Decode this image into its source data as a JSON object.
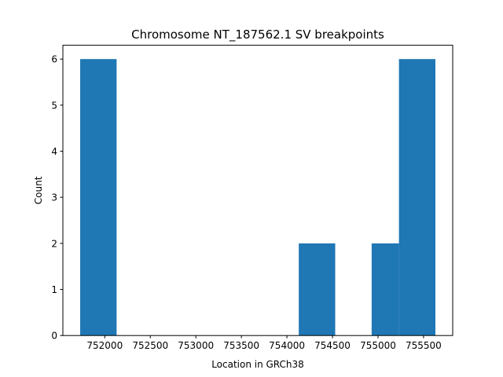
{
  "chart_data": {
    "type": "histogram",
    "title": "Chromosome NT_187562.1 SV breakpoints",
    "xlabel": "Location in GRCh38",
    "ylabel": "Count",
    "bin_edges": [
      751730,
      752130,
      752530,
      752930,
      753330,
      753730,
      754130,
      754530,
      754930,
      755230,
      755630
    ],
    "counts": [
      6,
      0,
      0,
      0,
      0,
      0,
      2,
      0,
      2,
      6
    ],
    "xlim": [
      751540,
      755820
    ],
    "ylim": [
      0,
      6.3
    ],
    "xticks": [
      752000,
      752500,
      753000,
      753500,
      754000,
      754500,
      755000,
      755500
    ],
    "yticks": [
      0,
      1,
      2,
      3,
      4,
      5,
      6
    ],
    "bar_color": "#1f77b4",
    "grid": false
  }
}
